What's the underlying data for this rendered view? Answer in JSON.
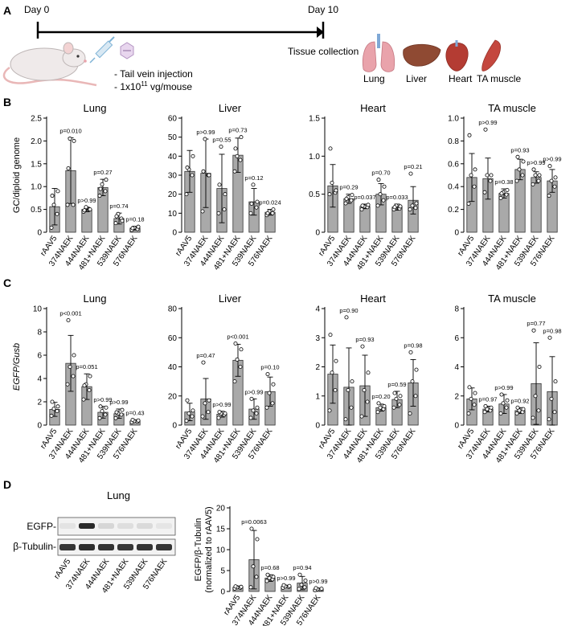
{
  "panel_labels": [
    "A",
    "B",
    "C",
    "D"
  ],
  "timeline": {
    "start_label": "Day 0",
    "end_label": "Day 10",
    "injection_lines": [
      "- Tail vein injection",
      "- 1x10",
      "11",
      " vg/mouse"
    ],
    "tissue_collection_label": "Tissue collection",
    "tissues": [
      "Lung",
      "Liver",
      "Heart",
      "TA muscle"
    ],
    "colors": {
      "lung": "#e9a3ab",
      "liver": "#8f4a33",
      "heart": "#b43c33",
      "muscle": "#c4473e",
      "mouse": "#efeaea",
      "syringe": "#7fb3d6"
    }
  },
  "western_blot": {
    "title": "Lung",
    "row_labels": [
      "EGFP-",
      "β-Tubulin-"
    ],
    "lanes": [
      "rAAV5",
      "374NAEK",
      "444NAEK",
      "481+NAEK",
      "539NAEK",
      "576NAEK"
    ],
    "egfp_band_intensity": [
      0.06,
      0.9,
      0.12,
      0.08,
      0.1,
      0.05
    ],
    "tubulin_band_intensity": [
      0.85,
      0.88,
      0.86,
      0.84,
      0.86,
      0.85
    ]
  },
  "chart_data": [
    {
      "id": "B-lung",
      "type": "bar",
      "panel": "B",
      "title": "Lung",
      "ylabel": "GC/diploid genome",
      "ylim": [
        0,
        2.5
      ],
      "yticks": [
        "0",
        "0.5",
        "1.0",
        "1.5",
        "2.0",
        "2.5"
      ],
      "categories": [
        "rAAV5",
        "374NAEK",
        "444NAEK",
        "481+NAEK",
        "539NAEK",
        "576NAEK"
      ],
      "values": [
        0.56,
        1.35,
        0.5,
        0.98,
        0.3,
        0.09
      ],
      "errors": [
        0.4,
        0.72,
        0.05,
        0.18,
        0.12,
        0.04
      ],
      "pvalues": [
        "",
        "p=0.010",
        "p>0.99",
        "p=0.27",
        "p=0.74",
        "p=0.18"
      ],
      "points": [
        [
          0.1,
          0.4,
          0.6,
          0.9,
          0.8
        ],
        [
          0.6,
          0.6,
          2.05,
          2.0,
          1.4
        ],
        [
          0.45,
          0.5,
          0.55,
          0.5,
          0.48
        ],
        [
          0.8,
          0.9,
          1.05,
          1.15,
          0.95
        ],
        [
          0.2,
          0.3,
          0.4,
          0.25,
          0.35
        ],
        [
          0.05,
          0.07,
          0.1,
          0.12,
          0.09
        ]
      ]
    },
    {
      "id": "B-liver",
      "type": "bar",
      "panel": "B",
      "title": "Liver",
      "ylabel": "",
      "ylim": [
        0,
        60
      ],
      "yticks": [
        "0",
        "10",
        "20",
        "30",
        "40",
        "50",
        "60"
      ],
      "categories": [
        "rAAV5",
        "374NAEK",
        "444NAEK",
        "481+NAEK",
        "539NAEK",
        "576NAEK"
      ],
      "values": [
        32,
        31,
        23,
        40.5,
        16,
        10.5
      ],
      "errors": [
        11,
        18,
        18,
        9,
        7,
        1.5
      ],
      "pvalues": [
        "",
        "p>0.99",
        "p=0.55",
        "p=0.73",
        "p=0.12",
        "p=0.024"
      ],
      "points": [
        [
          20,
          30,
          33,
          40,
          34
        ],
        [
          11,
          30,
          49,
          30,
          32
        ],
        [
          10,
          12,
          45,
          20,
          25
        ],
        [
          32,
          38,
          40,
          50,
          44
        ],
        [
          10,
          13,
          25,
          16,
          15
        ],
        [
          9,
          10,
          11,
          12,
          10
        ]
      ]
    },
    {
      "id": "B-heart",
      "type": "bar",
      "panel": "B",
      "title": "Heart",
      "ylabel": "",
      "ylim": [
        0,
        1.5
      ],
      "yticks": [
        "0",
        "0.5",
        "1.0",
        "1.5"
      ],
      "categories": [
        "rAAV5",
        "374NAEK",
        "444NAEK",
        "481+NAEK",
        "539NAEK",
        "576NAEK"
      ],
      "values": [
        0.61,
        0.44,
        0.34,
        0.5,
        0.33,
        0.42
      ],
      "errors": [
        0.28,
        0.06,
        0.03,
        0.14,
        0.04,
        0.18
      ],
      "pvalues": [
        "",
        "p=0.29",
        "p=0.037",
        "p=0.70",
        "p=0.033",
        "p=0.21"
      ],
      "points": [
        [
          0.5,
          0.52,
          0.65,
          0.55,
          1.1
        ],
        [
          0.38,
          0.42,
          0.46,
          0.49,
          0.44
        ],
        [
          0.3,
          0.33,
          0.34,
          0.36,
          0.35
        ],
        [
          0.35,
          0.42,
          0.5,
          0.6,
          0.69
        ],
        [
          0.3,
          0.31,
          0.35,
          0.34,
          0.33
        ],
        [
          0.3,
          0.32,
          0.35,
          0.38,
          0.77
        ]
      ]
    },
    {
      "id": "B-ta",
      "type": "bar",
      "panel": "B",
      "title": "TA muscle",
      "ylabel": "",
      "ylim": [
        0,
        1.0
      ],
      "yticks": [
        "0",
        "0.2",
        "0.4",
        "0.6",
        "0.8",
        "1.0"
      ],
      "categories": [
        "rAAV5",
        "374NAEK",
        "444NAEK",
        "481+NAEK",
        "539NAEK",
        "576NAEK"
      ],
      "values": [
        0.48,
        0.47,
        0.34,
        0.55,
        0.48,
        0.45
      ],
      "errors": [
        0.21,
        0.18,
        0.04,
        0.09,
        0.05,
        0.1
      ],
      "pvalues": [
        "",
        "p>0.99",
        "p=0.38",
        "p=0.93",
        "p>0.99",
        "p>0.99"
      ],
      "points": [
        [
          0.25,
          0.4,
          0.5,
          0.55,
          0.85
        ],
        [
          0.35,
          0.45,
          0.5,
          0.5,
          0.9
        ],
        [
          0.3,
          0.33,
          0.35,
          0.37,
          0.34
        ],
        [
          0.45,
          0.5,
          0.55,
          0.62,
          0.66
        ],
        [
          0.42,
          0.45,
          0.5,
          0.5,
          0.55
        ],
        [
          0.32,
          0.4,
          0.45,
          0.48,
          0.58
        ]
      ]
    },
    {
      "id": "C-lung",
      "type": "bar",
      "panel": "C",
      "title": "Lung",
      "ylabel": "EGFP/Gusb",
      "ylim": [
        0,
        10
      ],
      "yticks": [
        "0",
        "2",
        "4",
        "6",
        "8",
        "10"
      ],
      "categories": [
        "rAAV5",
        "374NAEK",
        "444NAEK",
        "481+NAEK",
        "539NAEK",
        "576NAEK"
      ],
      "values": [
        1.35,
        5.3,
        3.3,
        1.1,
        0.98,
        0.35
      ],
      "errors": [
        0.6,
        2.4,
        1.1,
        0.5,
        0.4,
        0.1
      ],
      "pvalues": [
        "",
        "p<0.001",
        "p=0.051",
        "p>0.99",
        "p>0.99",
        "p=0.43"
      ],
      "points": [
        [
          0.8,
          1.2,
          1.4,
          1.6,
          2.0
        ],
        [
          3.5,
          4.2,
          5.0,
          6.0,
          9.0
        ],
        [
          2.2,
          3.0,
          3.5,
          4.2,
          3.4
        ],
        [
          0.6,
          0.9,
          1.2,
          1.5,
          1.6
        ],
        [
          0.6,
          0.9,
          1.0,
          1.3,
          1.1
        ],
        [
          0.25,
          0.3,
          0.35,
          0.4,
          0.45
        ]
      ]
    },
    {
      "id": "C-liver",
      "type": "bar",
      "panel": "C",
      "title": "Liver",
      "ylabel": "",
      "ylim": [
        0,
        80
      ],
      "yticks": [
        "0",
        "20",
        "40",
        "60",
        "80"
      ],
      "categories": [
        "rAAV5",
        "374NAEK",
        "444NAEK",
        "481+NAEK",
        "539NAEK",
        "576NAEK"
      ],
      "values": [
        9,
        18,
        7.5,
        44.5,
        11,
        23
      ],
      "errors": [
        6,
        14,
        2,
        11,
        7,
        10
      ],
      "pvalues": [
        "",
        "p=0.47",
        "p>0.99",
        "p<0.001",
        "p>0.99",
        "p=0.10"
      ],
      "points": [
        [
          3,
          6,
          8,
          10,
          17
        ],
        [
          6,
          9,
          15,
          17,
          43
        ],
        [
          5,
          7,
          8,
          8,
          9
        ],
        [
          30,
          40,
          45,
          52,
          56
        ],
        [
          5,
          8,
          10,
          12,
          18
        ],
        [
          12,
          15,
          22,
          28,
          35
        ]
      ]
    },
    {
      "id": "C-heart",
      "type": "bar",
      "panel": "C",
      "title": "Heart",
      "ylabel": "",
      "ylim": [
        0,
        4
      ],
      "yticks": [
        "0",
        "1",
        "2",
        "3",
        "4"
      ],
      "categories": [
        "rAAV5",
        "374NAEK",
        "444NAEK",
        "481+NAEK",
        "539NAEK",
        "576NAEK"
      ],
      "values": [
        1.75,
        1.3,
        1.35,
        0.6,
        0.88,
        1.45
      ],
      "errors": [
        1.0,
        1.35,
        1.05,
        0.12,
        0.28,
        0.8
      ],
      "pvalues": [
        "",
        "p=0.90",
        "p=0.93",
        "p=0.20",
        "p=0.59",
        "p=0.98"
      ],
      "points": [
        [
          0.5,
          1.2,
          1.8,
          2.2,
          3.1
        ],
        [
          0.2,
          0.6,
          1.2,
          1.5,
          3.7
        ],
        [
          0.3,
          0.8,
          1.2,
          1.8,
          2.7
        ],
        [
          0.45,
          0.55,
          0.6,
          0.65,
          0.75
        ],
        [
          0.6,
          0.7,
          0.9,
          1.0,
          1.1
        ],
        [
          0.4,
          1.0,
          1.5,
          1.9,
          2.5
        ]
      ]
    },
    {
      "id": "C-ta",
      "type": "bar",
      "panel": "C",
      "title": "TA muscle",
      "ylabel": "",
      "ylim": [
        0,
        8
      ],
      "yticks": [
        "0",
        "2",
        "4",
        "6",
        "8"
      ],
      "categories": [
        "rAAV5",
        "374NAEK",
        "444NAEK",
        "481+NAEK",
        "539NAEK",
        "576NAEK"
      ],
      "values": [
        1.8,
        1.1,
        1.45,
        1.0,
        2.85,
        2.3
      ],
      "errors": [
        0.75,
        0.2,
        0.65,
        0.2,
        2.8,
        2.4
      ],
      "pvalues": [
        "",
        "p=0.97",
        "p>0.99",
        "p=0.92",
        "p=0.77",
        "p=0.98"
      ],
      "points": [
        [
          0.8,
          1.4,
          1.8,
          2.2,
          2.6
        ],
        [
          0.9,
          1.0,
          1.1,
          1.2,
          1.3
        ],
        [
          0.8,
          1.2,
          1.5,
          1.7,
          2.1
        ],
        [
          0.8,
          0.9,
          1.0,
          1.1,
          1.2
        ],
        [
          0.5,
          1.0,
          2.0,
          4.0,
          6.5
        ],
        [
          0.4,
          0.9,
          1.8,
          3.0,
          6.0
        ]
      ]
    },
    {
      "id": "D-wb",
      "type": "bar",
      "panel": "D",
      "title": "",
      "ylabel": "EGFP/β-Tubulin",
      "ylabel2": "(normalized to rAAV5)",
      "ylim": [
        0,
        20
      ],
      "yticks": [
        "0",
        "5",
        "10",
        "15",
        "20"
      ],
      "categories": [
        "rAAV5",
        "374NAEK",
        "444NAEK",
        "481+NAEK",
        "539NAEK",
        "576NAEK"
      ],
      "values": [
        1.0,
        7.6,
        3.2,
        1.2,
        2.0,
        0.55
      ],
      "errors": [
        0.3,
        7.0,
        0.8,
        0.3,
        1.6,
        0.25
      ],
      "pvalues": [
        "",
        "p=0.0063",
        "p=0.68",
        "p>0.99",
        "p=0.94",
        "p>0.99"
      ],
      "points": [
        [
          0.7,
          0.9,
          1.0,
          1.1,
          1.2
        ],
        [
          1.0,
          3.5,
          6.0,
          12.5,
          15.0
        ],
        [
          2.5,
          2.9,
          3.2,
          3.5,
          4.0
        ],
        [
          0.9,
          1.1,
          1.2,
          1.3,
          1.5
        ],
        [
          0.6,
          1.0,
          1.6,
          2.6,
          4.0
        ],
        [
          0.3,
          0.45,
          0.55,
          0.65,
          0.8
        ]
      ]
    }
  ]
}
